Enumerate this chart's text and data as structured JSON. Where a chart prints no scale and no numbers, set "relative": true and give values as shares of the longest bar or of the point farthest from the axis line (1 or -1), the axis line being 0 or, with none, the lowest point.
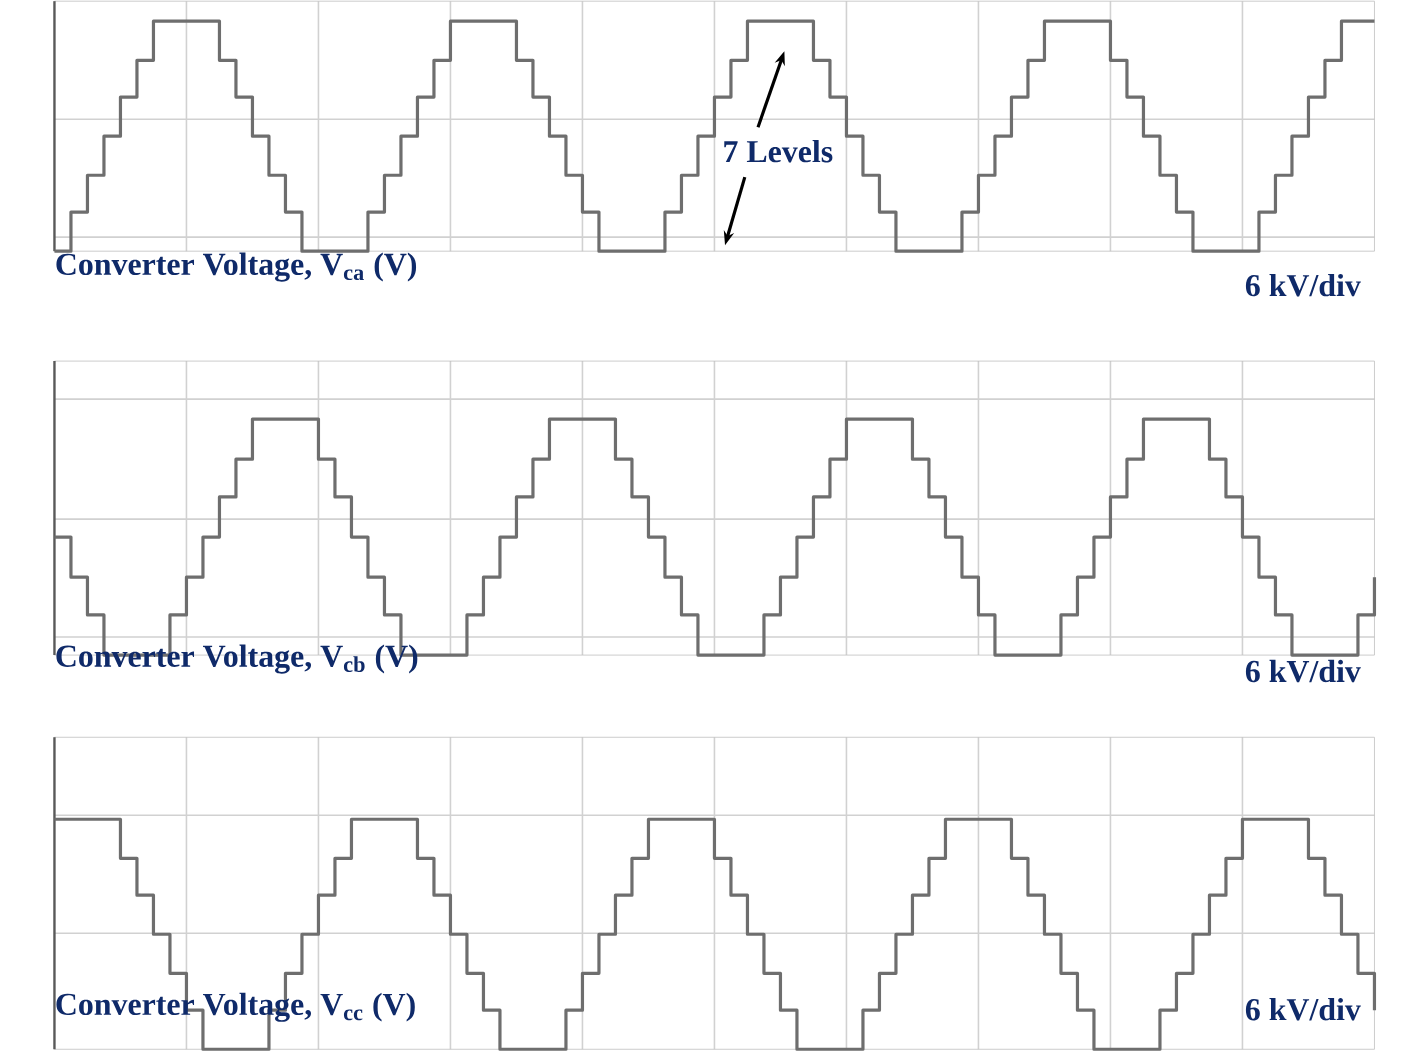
{
  "chart_data": [
    {
      "type": "step",
      "relative": true,
      "grid": true,
      "categories": [
        null,
        null,
        null,
        null,
        null,
        null,
        null,
        null,
        null,
        null,
        null,
        null,
        null,
        null,
        null,
        null,
        null,
        null,
        null,
        null,
        null,
        null,
        null,
        null,
        null,
        null,
        null,
        null,
        null,
        null,
        null,
        null,
        null,
        null,
        null,
        null,
        null,
        null,
        null,
        null,
        null,
        null,
        null,
        null,
        null,
        null,
        null,
        null,
        null,
        null,
        null,
        null,
        null,
        null,
        null,
        null,
        null,
        null,
        null,
        null,
        null,
        null,
        null,
        null,
        null,
        null,
        null,
        null,
        null,
        null,
        null,
        null,
        null,
        null,
        null,
        null,
        null,
        null,
        null,
        null,
        null
      ],
      "series": [
        {
          "color": "#6e6e6e",
          "values": [
            0,
            0.17,
            0.33,
            0.5,
            0.67,
            0.83,
            1,
            1,
            1,
            1,
            0.83,
            0.67,
            0.5,
            0.33,
            0.17,
            0,
            0,
            0,
            0,
            0.17,
            0.33,
            0.5,
            0.67,
            0.83,
            1,
            1,
            1,
            1,
            0.83,
            0.67,
            0.5,
            0.33,
            0.17,
            0,
            0,
            0,
            0,
            0.17,
            0.33,
            0.5,
            0.67,
            0.83,
            1,
            1,
            1,
            1,
            0.83,
            0.67,
            0.5,
            0.33,
            0.17,
            0,
            0,
            0,
            0,
            0.17,
            0.33,
            0.5,
            0.67,
            0.83,
            1,
            1,
            1,
            1,
            0.83,
            0.67,
            0.5,
            0.33,
            0.17,
            0,
            0,
            0,
            0,
            0.17,
            0.33,
            0.5,
            0.67,
            0.83,
            1,
            1,
            1
          ]
        }
      ],
      "annotations": [
        "Converter Voltage, V$_{ca}$ (V)",
        "6 kV/div",
        "7 Levels"
      ]
    },
    {
      "type": "step",
      "relative": true,
      "grid": true,
      "categories": [
        null,
        null,
        null,
        null,
        null,
        null,
        null,
        null,
        null,
        null,
        null,
        null,
        null,
        null,
        null,
        null,
        null,
        null,
        null,
        null,
        null,
        null,
        null,
        null,
        null,
        null,
        null,
        null,
        null,
        null,
        null,
        null,
        null,
        null,
        null,
        null,
        null,
        null,
        null,
        null,
        null,
        null,
        null,
        null,
        null,
        null,
        null,
        null,
        null,
        null,
        null,
        null,
        null,
        null,
        null,
        null,
        null,
        null,
        null,
        null,
        null,
        null,
        null,
        null,
        null,
        null,
        null,
        null,
        null,
        null,
        null,
        null,
        null,
        null,
        null,
        null,
        null,
        null,
        null,
        null,
        null
      ],
      "series": [
        {
          "color": "#6e6e6e",
          "values": [
            0.5,
            0.33,
            0.17,
            0,
            0,
            0,
            0,
            0.17,
            0.33,
            0.5,
            0.67,
            0.83,
            1,
            1,
            1,
            1,
            0.83,
            0.67,
            0.5,
            0.33,
            0.17,
            0,
            0,
            0,
            0,
            0.17,
            0.33,
            0.5,
            0.67,
            0.83,
            1,
            1,
            1,
            1,
            0.83,
            0.67,
            0.5,
            0.33,
            0.17,
            0,
            0,
            0,
            0,
            0.17,
            0.33,
            0.5,
            0.67,
            0.83,
            1,
            1,
            1,
            1,
            0.83,
            0.67,
            0.5,
            0.33,
            0.17,
            0,
            0,
            0,
            0,
            0.17,
            0.33,
            0.5,
            0.67,
            0.83,
            1,
            1,
            1,
            1,
            0.83,
            0.67,
            0.5,
            0.33,
            0.17,
            0,
            0,
            0,
            0,
            0.17,
            0.33
          ]
        }
      ],
      "annotations": [
        "Converter Voltage, V$_{cb}$ (V)",
        "6 kV/div"
      ]
    },
    {
      "type": "step",
      "relative": true,
      "grid": true,
      "categories": [
        null,
        null,
        null,
        null,
        null,
        null,
        null,
        null,
        null,
        null,
        null,
        null,
        null,
        null,
        null,
        null,
        null,
        null,
        null,
        null,
        null,
        null,
        null,
        null,
        null,
        null,
        null,
        null,
        null,
        null,
        null,
        null,
        null,
        null,
        null,
        null,
        null,
        null,
        null,
        null,
        null,
        null,
        null,
        null,
        null,
        null,
        null,
        null,
        null,
        null,
        null,
        null,
        null,
        null,
        null,
        null,
        null,
        null,
        null,
        null,
        null,
        null,
        null,
        null,
        null,
        null,
        null,
        null,
        null,
        null,
        null,
        null,
        null,
        null,
        null,
        null,
        null,
        null,
        null,
        null,
        null
      ],
      "series": [
        {
          "color": "#6e6e6e",
          "values": [
            1,
            1,
            1,
            1,
            0.83,
            0.67,
            0.5,
            0.33,
            0.17,
            0,
            0,
            0,
            0,
            0.17,
            0.33,
            0.5,
            0.67,
            0.83,
            1,
            1,
            1,
            1,
            0.83,
            0.67,
            0.5,
            0.33,
            0.17,
            0,
            0,
            0,
            0,
            0.17,
            0.33,
            0.5,
            0.67,
            0.83,
            1,
            1,
            1,
            1,
            0.83,
            0.67,
            0.5,
            0.33,
            0.17,
            0,
            0,
            0,
            0,
            0.17,
            0.33,
            0.5,
            0.67,
            0.83,
            1,
            1,
            1,
            1,
            0.83,
            0.67,
            0.5,
            0.33,
            0.17,
            0,
            0,
            0,
            0,
            0.17,
            0.33,
            0.5,
            0.67,
            0.83,
            1,
            1,
            1,
            1,
            0.83,
            0.67,
            0.5,
            0.33,
            0.17
          ]
        }
      ],
      "annotations": [
        "Converter Voltage, V$_{cc}$ (V)",
        "6 kV/div"
      ]
    }
  ]
}
